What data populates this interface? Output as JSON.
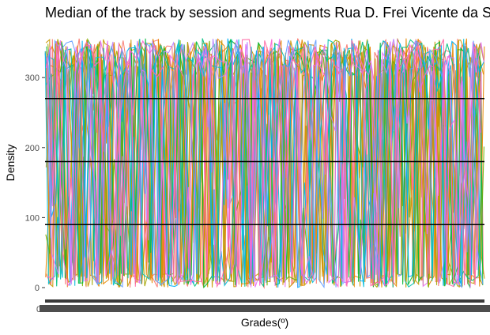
{
  "chart_data": {
    "type": "line",
    "title": "Median of the track by session and segments Rua D. Frei Vicente da Soledade",
    "xlabel": "Grades(º)",
    "ylabel": "Density",
    "ylim": [
      0,
      360
    ],
    "y_ticks": [
      0,
      100,
      200,
      300
    ],
    "x_tick_label_sample": "0",
    "reference_lines": [
      {
        "y": 90
      },
      {
        "y": 180
      },
      {
        "y": 270
      }
    ],
    "series_colors": [
      "#F8766D",
      "#E58700",
      "#C99800",
      "#A3A500",
      "#6BB100",
      "#00BA38",
      "#00BF7D",
      "#00C0AF",
      "#00BCD8",
      "#00B0F6",
      "#619CFF",
      "#B983FF",
      "#E76BF3",
      "#FD61D1",
      "#FF67A4"
    ],
    "grid": false,
    "legend": "none",
    "note_series": "Dense overlapping orange/olive/green/blue/pink lines oscillating between ~0 and ~355"
  }
}
